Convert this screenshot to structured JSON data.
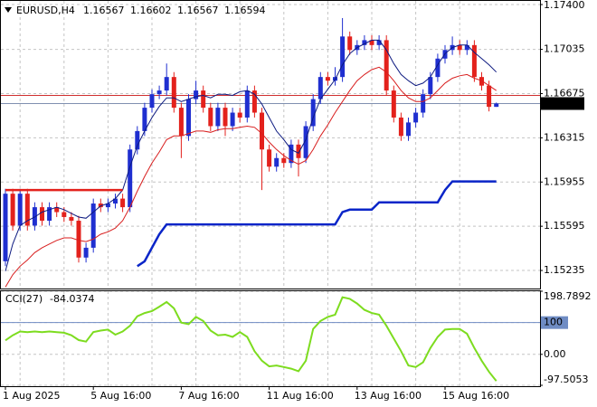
{
  "chart_data": [
    {
      "type": "candlestick",
      "title": "EURUSD,H4",
      "categories": [
        "1 Aug 2025",
        null,
        null,
        null,
        null,
        null,
        null,
        null,
        null,
        null,
        null,
        null,
        "5 Aug 16:00",
        null,
        null,
        null,
        null,
        null,
        null,
        null,
        null,
        null,
        null,
        null,
        "7 Aug 16:00",
        null,
        null,
        null,
        null,
        null,
        null,
        null,
        null,
        null,
        null,
        null,
        "11 Aug 16:00",
        null,
        null,
        null,
        null,
        null,
        null,
        null,
        null,
        null,
        null,
        null,
        "13 Aug 16:00",
        null,
        null,
        null,
        null,
        null,
        null,
        null,
        null,
        null,
        null,
        null,
        "15 Aug 16:00",
        null,
        null,
        null,
        null,
        null,
        null,
        null
      ],
      "open": [
        1.1531,
        1.1586,
        1.156,
        1.1586,
        1.156,
        1.1575,
        1.1564,
        1.1575,
        1.1571,
        1.1567,
        1.1564,
        1.1534,
        1.1542,
        1.1578,
        1.1575,
        1.1578,
        1.1582,
        1.1575,
        1.1622,
        1.1637,
        1.1656,
        1.1667,
        1.167,
        1.1681,
        1.1656,
        1.1633,
        1.1663,
        1.167,
        1.1656,
        1.1641,
        1.1656,
        1.1641,
        1.1652,
        1.1648,
        1.167,
        1.1652,
        1.1622,
        1.1608,
        1.1615,
        1.1611,
        1.1626,
        1.1615,
        1.1641,
        1.1663,
        1.1681,
        1.1678,
        1.1681,
        1.1714,
        1.1703,
        1.1707,
        1.1711,
        1.1707,
        1.1711,
        1.167,
        1.1648,
        1.1633,
        1.1644,
        1.1652,
        1.1667,
        1.1681,
        1.1696,
        1.1703,
        1.1707,
        1.1703,
        1.1707,
        1.1681,
        1.1674,
        1.16567
      ],
      "high": [
        1.159,
        1.159,
        1.159,
        1.159,
        1.1579,
        1.1579,
        1.1579,
        1.1579,
        1.1575,
        1.1571,
        1.1568,
        1.1546,
        1.1582,
        1.1582,
        1.1582,
        1.1586,
        1.1586,
        1.1626,
        1.1641,
        1.166,
        1.1671,
        1.1674,
        1.1692,
        1.1685,
        1.166,
        1.1667,
        1.1678,
        1.1674,
        1.166,
        1.166,
        1.166,
        1.1656,
        1.1656,
        1.1674,
        1.1674,
        1.1656,
        1.1626,
        1.1619,
        1.1619,
        1.163,
        1.163,
        1.1645,
        1.1667,
        1.1685,
        1.1685,
        1.1689,
        1.1729,
        1.1718,
        1.1711,
        1.1715,
        1.1715,
        1.1715,
        1.1715,
        1.1674,
        1.1652,
        1.1648,
        1.1656,
        1.1671,
        1.1685,
        1.17,
        1.1707,
        1.1714,
        1.1711,
        1.1711,
        1.1711,
        1.1685,
        1.1678,
        1.16602
      ],
      "low": [
        1.1527,
        1.1556,
        1.1556,
        1.1556,
        1.1556,
        1.156,
        1.156,
        1.1567,
        1.1563,
        1.156,
        1.153,
        1.153,
        1.1538,
        1.1571,
        1.1571,
        1.1574,
        1.1571,
        1.1571,
        1.1618,
        1.1633,
        1.1652,
        1.1663,
        1.1666,
        1.1652,
        1.1615,
        1.1629,
        1.1659,
        1.1652,
        1.1637,
        1.1637,
        1.1633,
        1.1637,
        1.1644,
        1.1644,
        1.1648,
        1.1589,
        1.1604,
        1.1604,
        1.1607,
        1.1607,
        1.16,
        1.1611,
        1.1637,
        1.1659,
        1.1674,
        1.1674,
        1.1677,
        1.1699,
        1.1699,
        1.1703,
        1.1703,
        1.1703,
        1.1666,
        1.1644,
        1.1629,
        1.1629,
        1.164,
        1.1648,
        1.1663,
        1.1677,
        1.1692,
        1.1699,
        1.1699,
        1.1699,
        1.1677,
        1.167,
        1.1653,
        1.16567
      ],
      "close": [
        1.1586,
        1.156,
        1.1586,
        1.156,
        1.1575,
        1.1564,
        1.1575,
        1.1571,
        1.1567,
        1.1564,
        1.1534,
        1.1542,
        1.1578,
        1.1575,
        1.1578,
        1.1582,
        1.1575,
        1.1622,
        1.1637,
        1.1656,
        1.1667,
        1.167,
        1.1681,
        1.1656,
        1.1633,
        1.1663,
        1.167,
        1.1656,
        1.1641,
        1.1656,
        1.1641,
        1.1652,
        1.1648,
        1.167,
        1.1652,
        1.1622,
        1.1608,
        1.1615,
        1.1611,
        1.1626,
        1.1615,
        1.1641,
        1.1663,
        1.1681,
        1.1678,
        1.1681,
        1.1714,
        1.1703,
        1.1707,
        1.1711,
        1.1707,
        1.1711,
        1.167,
        1.1648,
        1.1633,
        1.1644,
        1.1652,
        1.1667,
        1.1681,
        1.1696,
        1.1703,
        1.1707,
        1.1703,
        1.1707,
        1.1681,
        1.1674,
        1.16567,
        1.16594
      ],
      "up_color": "#1f2fd0",
      "down_color": "#e3211c",
      "overlays": [
        {
          "color": "#0d1a80",
          "width": 1,
          "values": [
            1.1523,
            1.1545,
            1.156,
            1.1564,
            1.1567,
            1.1571,
            1.1573,
            1.1575,
            1.1573,
            1.157,
            1.1567,
            1.1566,
            1.1571,
            1.1576,
            1.1578,
            1.1582,
            1.1589,
            1.1608,
            1.1625,
            1.1637,
            1.1648,
            1.1657,
            1.1664,
            1.1664,
            1.1661,
            1.1663,
            1.1665,
            1.1666,
            1.1664,
            1.1667,
            1.1667,
            1.1666,
            1.1669,
            1.167,
            1.1667,
            1.1659,
            1.1648,
            1.1637,
            1.163,
            1.1622,
            1.1619,
            1.163,
            1.1648,
            1.1663,
            1.1671,
            1.1679,
            1.1691,
            1.17,
            1.1705,
            1.1708,
            1.1711,
            1.1711,
            1.1703,
            1.1692,
            1.1683,
            1.1678,
            1.1674,
            1.1676,
            1.1681,
            1.1691,
            1.17,
            1.1705,
            1.1707,
            1.1707,
            1.1701,
            1.1696,
            1.1691,
            1.1685
          ]
        },
        {
          "color": "#d81e1e",
          "width": 1,
          "values": [
            1.151,
            1.152,
            1.1527,
            1.1532,
            1.1538,
            1.1542,
            1.1545,
            1.1548,
            1.155,
            1.155,
            1.1548,
            1.1547,
            1.1549,
            1.1553,
            1.1555,
            1.1558,
            1.1564,
            1.1575,
            1.1588,
            1.16,
            1.1611,
            1.162,
            1.163,
            1.1633,
            1.1633,
            1.1635,
            1.1637,
            1.1637,
            1.1636,
            1.1638,
            1.1639,
            1.1639,
            1.164,
            1.1641,
            1.164,
            1.1635,
            1.1628,
            1.1622,
            1.1617,
            1.1613,
            1.161,
            1.1613,
            1.1622,
            1.1633,
            1.1642,
            1.1652,
            1.1661,
            1.167,
            1.1678,
            1.1683,
            1.1687,
            1.1689,
            1.1685,
            1.1678,
            1.167,
            1.1664,
            1.1661,
            1.1661,
            1.1664,
            1.167,
            1.1676,
            1.168,
            1.1682,
            1.1683,
            1.168,
            1.1678,
            1.1674,
            1.167
          ]
        },
        {
          "color": "#0a25c8",
          "width": 2.5,
          "values": [
            null,
            null,
            null,
            null,
            null,
            null,
            null,
            null,
            null,
            null,
            null,
            null,
            null,
            null,
            null,
            null,
            null,
            null,
            1.1527,
            1.1531,
            1.1542,
            1.1553,
            1.1561,
            1.1561,
            1.1561,
            1.1561,
            1.1561,
            1.1561,
            1.1561,
            1.1561,
            1.1561,
            1.1561,
            1.1561,
            1.1561,
            1.1561,
            1.1561,
            1.1561,
            1.1561,
            1.1561,
            1.1561,
            1.1561,
            1.1561,
            1.1561,
            1.1561,
            1.1561,
            1.1561,
            1.1571,
            1.1573,
            1.1573,
            1.1573,
            1.1573,
            1.1579,
            1.1579,
            1.1579,
            1.1579,
            1.1579,
            1.1579,
            1.1579,
            1.1579,
            1.1579,
            1.1589,
            1.1596,
            1.1596,
            1.1596,
            1.1596,
            1.1596,
            1.1596,
            1.1596
          ]
        },
        {
          "color": "#e3211c",
          "width": 2.5,
          "values": [
            1.1589,
            1.1589,
            1.1589,
            1.1589,
            1.1589,
            1.1589,
            1.1589,
            1.1589,
            1.1589,
            1.1589,
            1.1589,
            1.1589,
            1.1589,
            1.1589,
            1.1589,
            1.1589,
            1.1589,
            null,
            null,
            null,
            null,
            null,
            null,
            null,
            null,
            null,
            null,
            null,
            null,
            null,
            null,
            null,
            null,
            null,
            null,
            null,
            null,
            null,
            null,
            null,
            null,
            null,
            null,
            null,
            null,
            null,
            null,
            null,
            null,
            null,
            null,
            null,
            null,
            null,
            null,
            null,
            null,
            null,
            null,
            null,
            null,
            null,
            null,
            null,
            null,
            null,
            null,
            null
          ]
        }
      ],
      "level_line": {
        "value": 1.1666,
        "color": "#d03030"
      },
      "bid_line_color": "#8090b0",
      "ylim": [
        1.15088,
        1.17437
      ],
      "yticks": [
        {
          "value": 1.174,
          "label": "1.17400"
        },
        {
          "value": 1.17035,
          "label": "1.17035"
        },
        {
          "value": 1.16675,
          "label": "1.16675"
        },
        {
          "value": 1.16315,
          "label": "1.16315"
        },
        {
          "value": 1.15955,
          "label": "1.15955"
        },
        {
          "value": 1.15595,
          "label": "1.15595"
        },
        {
          "value": 1.15235,
          "label": "1.15235"
        }
      ],
      "grid": true
    },
    {
      "type": "line",
      "title": "CCI(27)",
      "color": "#7ddc1f",
      "values": [
        44,
        60,
        72,
        70,
        72,
        70,
        72,
        70,
        68,
        60,
        45,
        40,
        70,
        75,
        78,
        62,
        72,
        90,
        120,
        130,
        136,
        150,
        165,
        145,
        100,
        95,
        118,
        105,
        75,
        60,
        62,
        55,
        70,
        55,
        10,
        -20,
        -38,
        -35,
        -40,
        -45,
        -53,
        -20,
        80,
        105,
        118,
        125,
        180,
        175,
        160,
        140,
        130,
        125,
        90,
        50,
        10,
        -35,
        -40,
        -25,
        20,
        55,
        78,
        80,
        80,
        65,
        20,
        -20,
        -55,
        -84.0374
      ],
      "ylim": [
        -97.5053,
        198.7892
      ],
      "yticks": [
        198.7892,
        100,
        {
          "value": 0,
          "label": "0.00"
        },
        -97.5053
      ],
      "level": 100,
      "level_color": "#6f8cc4",
      "grid": true
    }
  ]
}
